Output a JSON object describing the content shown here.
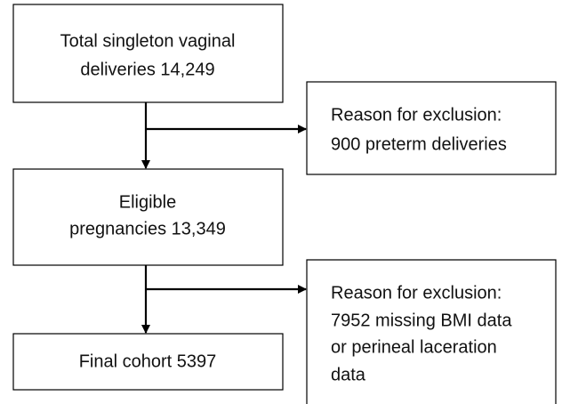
{
  "nodes": [
    {
      "lines": [
        "Total singleton vaginal",
        "deliveries 14,249"
      ]
    },
    {
      "lines": [
        "Reason for exclusion:",
        "900 preterm deliveries"
      ]
    },
    {
      "lines": [
        "Eligible",
        "pregnancies 13,349"
      ]
    },
    {
      "lines": [
        "Reason for exclusion:",
        "7952 missing BMI data",
        "or perineal laceration",
        "data"
      ]
    },
    {
      "lines": [
        "Final cohort 5397"
      ]
    }
  ]
}
